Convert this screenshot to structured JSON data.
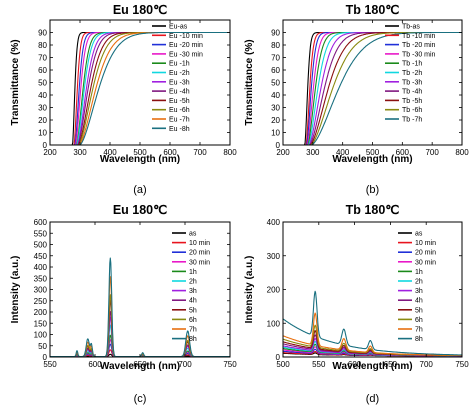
{
  "chart_data": [
    {
      "type": "line",
      "panel": "(a)",
      "title": "Eu 180℃",
      "xlabel": "Wavelength (nm)",
      "ylabel": "Transmittance (%)",
      "xlim": [
        200,
        800
      ],
      "ylim": [
        0,
        100
      ],
      "xticks": [
        200,
        300,
        400,
        500,
        600,
        700,
        800
      ],
      "yticks": [
        0,
        10,
        20,
        30,
        40,
        50,
        60,
        70,
        80,
        90
      ],
      "legend_position": "right",
      "grid": false,
      "series": [
        {
          "name": "Eu-as",
          "color": "#000000",
          "edge": 290,
          "width": 10,
          "plateau": 90
        },
        {
          "name": "Eu -10 min",
          "color": "#e8141e",
          "edge": 295,
          "width": 14,
          "plateau": 90
        },
        {
          "name": "Eu -20 min",
          "color": "#2030d8",
          "edge": 298,
          "width": 18,
          "plateau": 90
        },
        {
          "name": "Eu -30 min",
          "color": "#e818c8",
          "edge": 300,
          "width": 22,
          "plateau": 90
        },
        {
          "name": "Eu -1h",
          "color": "#1a8a1a",
          "edge": 303,
          "width": 28,
          "plateau": 90
        },
        {
          "name": "Eu -2h",
          "color": "#10d8e0",
          "edge": 304,
          "width": 32,
          "plateau": 90
        },
        {
          "name": "Eu -3h",
          "color": "#a020e0",
          "edge": 306,
          "width": 38,
          "plateau": 90
        },
        {
          "name": "Eu -4h",
          "color": "#801880",
          "edge": 307,
          "width": 44,
          "plateau": 90
        },
        {
          "name": "Eu -5h",
          "color": "#8a1010",
          "edge": 309,
          "width": 52,
          "plateau": 90
        },
        {
          "name": "Eu -6h",
          "color": "#8a8a10",
          "edge": 310,
          "width": 60,
          "plateau": 90
        },
        {
          "name": "Eu -7h",
          "color": "#e87010",
          "edge": 312,
          "width": 70,
          "plateau": 90
        },
        {
          "name": "Eu -8h",
          "color": "#1a7080",
          "edge": 314,
          "width": 80,
          "plateau": 90
        }
      ]
    },
    {
      "type": "line",
      "panel": "(b)",
      "title": "Tb 180℃",
      "xlabel": "Wavelength (nm)",
      "ylabel": "Transmittance (%)",
      "xlim": [
        200,
        800
      ],
      "ylim": [
        0,
        100
      ],
      "xticks": [
        200,
        300,
        400,
        500,
        600,
        700,
        800
      ],
      "yticks": [
        0,
        10,
        20,
        30,
        40,
        50,
        60,
        70,
        80,
        90
      ],
      "legend_position": "right",
      "grid": false,
      "series": [
        {
          "name": "Tb-as",
          "color": "#000000",
          "edge": 288,
          "width": 12,
          "plateau": 90
        },
        {
          "name": "Tb -10 min",
          "color": "#e8141e",
          "edge": 292,
          "width": 16,
          "plateau": 90
        },
        {
          "name": "Tb -20 min",
          "color": "#2030d8",
          "edge": 294,
          "width": 20,
          "plateau": 90
        },
        {
          "name": "Tb -30 min",
          "color": "#e818c8",
          "edge": 296,
          "width": 26,
          "plateau": 90
        },
        {
          "name": "Tb -1h",
          "color": "#1a8a1a",
          "edge": 298,
          "width": 32,
          "plateau": 90
        },
        {
          "name": "Tb -2h",
          "color": "#10d8e0",
          "edge": 300,
          "width": 40,
          "plateau": 90
        },
        {
          "name": "Tb -3h",
          "color": "#a020e0",
          "edge": 302,
          "width": 50,
          "plateau": 90
        },
        {
          "name": "Tb -4h",
          "color": "#801880",
          "edge": 304,
          "width": 62,
          "plateau": 90
        },
        {
          "name": "Tb -5h",
          "color": "#8a1010",
          "edge": 306,
          "width": 76,
          "plateau": 90
        },
        {
          "name": "Tb -6h",
          "color": "#8a8a10",
          "edge": 308,
          "width": 92,
          "plateau": 90
        },
        {
          "name": "Tb -7h",
          "color": "#1a7080",
          "edge": 310,
          "width": 115,
          "plateau": 90
        }
      ]
    },
    {
      "type": "line",
      "panel": "(c)",
      "title": "Eu 180℃",
      "xlabel": "Wavelength (nm)",
      "ylabel": "Intensity (a.u.)",
      "xlim": [
        550,
        750
      ],
      "ylim": [
        0,
        600
      ],
      "xticks": [
        550,
        600,
        650,
        700,
        750
      ],
      "yticks": [
        0,
        50,
        100,
        150,
        200,
        250,
        300,
        350,
        400,
        450,
        500,
        550,
        600
      ],
      "legend_position": "right",
      "grid": false,
      "peaks_nm": [
        580,
        592,
        617,
        653,
        703
      ],
      "series": [
        {
          "name": "as",
          "color": "#000000",
          "peak": 10
        },
        {
          "name": "10 min",
          "color": "#e8141e",
          "peak": 30
        },
        {
          "name": "20 min",
          "color": "#2030d8",
          "peak": 55
        },
        {
          "name": "30 min",
          "color": "#e818c8",
          "peak": 75
        },
        {
          "name": "1h",
          "color": "#1a8a1a",
          "peak": 95
        },
        {
          "name": "2h",
          "color": "#10d8e0",
          "peak": 140
        },
        {
          "name": "3h",
          "color": "#a020e0",
          "peak": 175
        },
        {
          "name": "4h",
          "color": "#801880",
          "peak": 200
        },
        {
          "name": "5h",
          "color": "#8a1010",
          "peak": 250
        },
        {
          "name": "6h",
          "color": "#8a8a10",
          "peak": 275
        },
        {
          "name": "7h",
          "color": "#e87010",
          "peak": 355
        },
        {
          "name": "8h",
          "color": "#1a7080",
          "peak": 438
        }
      ]
    },
    {
      "type": "line",
      "panel": "(d)",
      "title": "Tb 180℃",
      "xlabel": "Wavelength (nm)",
      "ylabel": "Intensity (a.u.)",
      "xlim": [
        500,
        750
      ],
      "ylim": [
        0,
        400
      ],
      "xticks": [
        500,
        550,
        600,
        650,
        700,
        750
      ],
      "yticks": [
        0,
        100,
        200,
        300,
        400
      ],
      "legend_position": "right",
      "grid": false,
      "peaks_nm": [
        545,
        585,
        622
      ],
      "series": [
        {
          "name": "as",
          "color": "#000000",
          "peak": 8,
          "background": 8
        },
        {
          "name": "10 min",
          "color": "#e8141e",
          "peak": 12,
          "background": 10
        },
        {
          "name": "20 min",
          "color": "#2030d8",
          "peak": 18,
          "background": 14
        },
        {
          "name": "30 min",
          "color": "#e818c8",
          "peak": 25,
          "background": 18
        },
        {
          "name": "1h",
          "color": "#1a8a1a",
          "peak": 32,
          "background": 22
        },
        {
          "name": "2h",
          "color": "#10d8e0",
          "peak": 40,
          "background": 26
        },
        {
          "name": "3h",
          "color": "#a020e0",
          "peak": 48,
          "background": 30
        },
        {
          "name": "4h",
          "color": "#801880",
          "peak": 58,
          "background": 36
        },
        {
          "name": "5h",
          "color": "#8a1010",
          "peak": 70,
          "background": 42
        },
        {
          "name": "6h",
          "color": "#8a8a10",
          "peak": 85,
          "background": 50
        },
        {
          "name": "7h",
          "color": "#e87010",
          "peak": 120,
          "background": 60
        },
        {
          "name": "8h",
          "color": "#1a7080",
          "peak": 178,
          "background": 110
        }
      ]
    }
  ]
}
